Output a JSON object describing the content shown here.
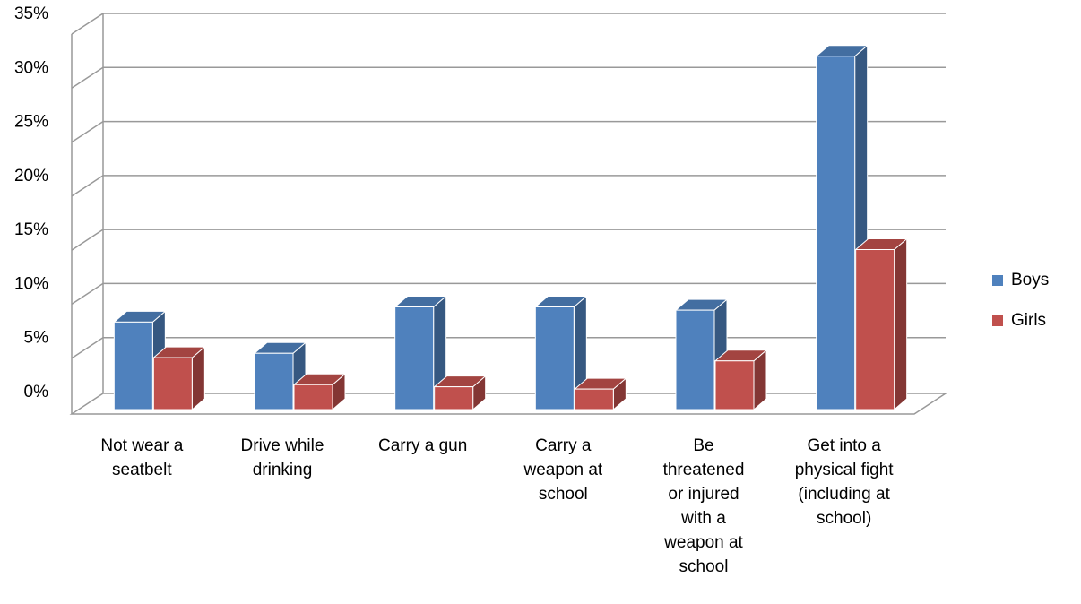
{
  "chart_data": {
    "type": "bar3d",
    "categories": [
      "Not wear a seatbelt",
      "Drive while drinking",
      "Carry a gun",
      "Carry a weapon at school",
      "Be threatened or injured with a weapon at school",
      "Get into a physical fight (including at school)"
    ],
    "series": [
      {
        "name": "Boys",
        "color": "#4F81BD",
        "values": [
          8.1,
          5.2,
          9.5,
          9.5,
          9.2,
          32.7
        ]
      },
      {
        "name": "Girls",
        "color": "#C0504D",
        "values": [
          4.8,
          2.3,
          2.1,
          1.9,
          4.5,
          14.8
        ]
      }
    ],
    "ylim": [
      0,
      35
    ],
    "yticks": [
      {
        "value": 0,
        "label": "0%"
      },
      {
        "value": 5,
        "label": "5%"
      },
      {
        "value": 10,
        "label": "10%"
      },
      {
        "value": 15,
        "label": "15%"
      },
      {
        "value": 20,
        "label": "20%"
      },
      {
        "value": 25,
        "label": "25%"
      },
      {
        "value": 30,
        "label": "30%"
      },
      {
        "value": 35,
        "label": "35%"
      }
    ],
    "grid": true,
    "legend": "right"
  }
}
